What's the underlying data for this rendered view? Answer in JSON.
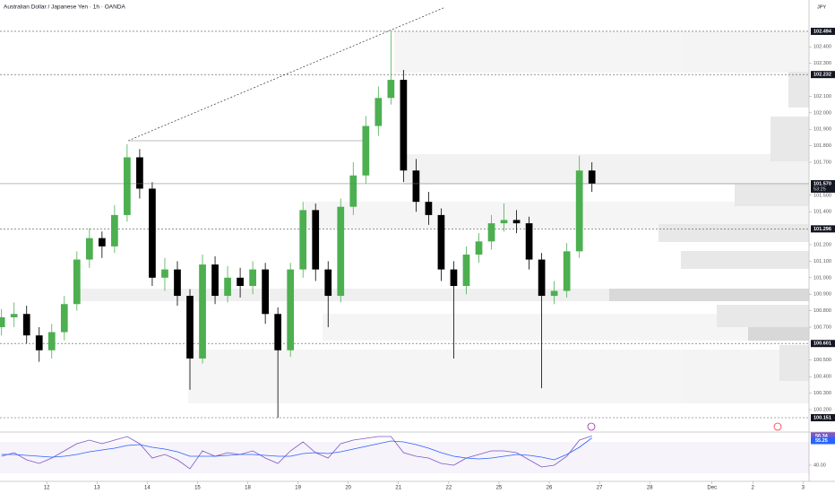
{
  "chart_data": {
    "type": "candlestick",
    "title": "Australian Dollar / Japanese Yen · 1h · OANDA",
    "currency": "JPY",
    "up_color": "#4caf50",
    "down_color": "#000000",
    "x": [
      0.1,
      0.35,
      0.6,
      0.85,
      1.1,
      1.35,
      1.6,
      1.85,
      2.1,
      2.35,
      2.6,
      2.85,
      3.1,
      3.35,
      3.6,
      3.85,
      4.1,
      4.35,
      4.6,
      4.85,
      5.1,
      5.35,
      5.6,
      5.85,
      6.1,
      6.35,
      6.6,
      6.85,
      7.1,
      7.35,
      7.6,
      7.85,
      8.1,
      8.35,
      8.6,
      8.85,
      9.1,
      9.35,
      9.6,
      9.85,
      10.1,
      10.35,
      10.6,
      10.85,
      11.1,
      11.35,
      11.6,
      11.85
    ],
    "open": [
      100.7,
      100.76,
      100.78,
      100.65,
      100.56,
      100.67,
      100.84,
      101.11,
      101.24,
      101.19,
      101.38,
      101.73,
      101.54,
      101.0,
      101.05,
      100.89,
      100.51,
      101.08,
      100.89,
      101.0,
      100.95,
      101.05,
      100.78,
      100.56,
      101.05,
      101.41,
      101.05,
      100.89,
      101.43,
      101.62,
      101.92,
      102.09,
      102.2,
      101.65,
      101.46,
      101.38,
      101.05,
      100.95,
      101.14,
      101.22,
      101.33,
      101.35,
      101.33,
      101.11,
      100.89,
      100.92,
      101.16,
      101.65
    ],
    "high": [
      100.81,
      100.85,
      100.83,
      100.7,
      100.72,
      100.89,
      101.16,
      101.3,
      101.28,
      101.44,
      101.81,
      101.78,
      101.58,
      101.12,
      101.1,
      100.93,
      101.14,
      101.13,
      101.07,
      101.06,
      101.1,
      101.09,
      100.82,
      101.09,
      101.46,
      101.45,
      101.1,
      101.48,
      101.7,
      101.98,
      102.16,
      102.49,
      102.26,
      101.72,
      101.52,
      101.42,
      101.1,
      101.19,
      101.27,
      101.38,
      101.45,
      101.41,
      101.37,
      101.15,
      100.98,
      101.21,
      101.74,
      101.7
    ],
    "low": [
      100.65,
      100.7,
      100.6,
      100.49,
      100.51,
      100.62,
      100.8,
      101.06,
      101.12,
      101.15,
      101.34,
      101.48,
      100.95,
      100.92,
      100.83,
      100.32,
      100.48,
      100.84,
      100.85,
      100.88,
      100.9,
      100.72,
      100.15,
      100.52,
      101.0,
      100.98,
      100.7,
      100.85,
      101.38,
      101.57,
      101.86,
      102.05,
      101.58,
      101.4,
      101.32,
      100.98,
      100.51,
      100.9,
      101.09,
      101.17,
      101.28,
      101.27,
      101.05,
      100.33,
      100.84,
      100.88,
      101.12,
      101.52
    ],
    "close": [
      100.76,
      100.78,
      100.65,
      100.56,
      100.67,
      100.84,
      101.11,
      101.24,
      101.19,
      101.38,
      101.73,
      101.54,
      101.0,
      101.05,
      100.89,
      100.51,
      101.08,
      100.89,
      101.0,
      100.95,
      101.05,
      100.78,
      100.56,
      101.05,
      101.41,
      101.05,
      100.89,
      101.43,
      101.62,
      101.92,
      102.09,
      102.2,
      101.65,
      101.46,
      101.38,
      101.05,
      100.95,
      101.14,
      101.22,
      101.33,
      101.35,
      101.33,
      101.11,
      100.89,
      100.92,
      101.16,
      101.65,
      101.57
    ],
    "xlim": [
      0.07,
      16.17
    ],
    "ylim": [
      100.064,
      102.684
    ],
    "xticks": [
      {
        "value": 1,
        "label": "12"
      },
      {
        "value": 2,
        "label": "13"
      },
      {
        "value": 3,
        "label": "14"
      },
      {
        "value": 4,
        "label": "15"
      },
      {
        "value": 5,
        "label": "18"
      },
      {
        "value": 6,
        "label": "19"
      },
      {
        "value": 7,
        "label": "20"
      },
      {
        "value": 8,
        "label": "21"
      },
      {
        "value": 9,
        "label": "22"
      },
      {
        "value": 10,
        "label": "25"
      },
      {
        "value": 11,
        "label": "26"
      },
      {
        "value": 12,
        "label": "27"
      },
      {
        "value": 13,
        "label": "28"
      },
      {
        "value": 14.24,
        "label": "Dec"
      },
      {
        "value": 15.05,
        "label": "2"
      },
      {
        "value": 16.05,
        "label": "3"
      }
    ],
    "yticks": [
      {
        "value": 100.2,
        "label": "100.200"
      },
      {
        "value": 100.3,
        "label": "100.300"
      },
      {
        "value": 100.4,
        "label": "100.400"
      },
      {
        "value": 100.5,
        "label": "100.500"
      },
      {
        "value": 100.7,
        "label": "100.700"
      },
      {
        "value": 100.8,
        "label": "100.800"
      },
      {
        "value": 100.9,
        "label": "100.900"
      },
      {
        "value": 101.0,
        "label": "101.000"
      },
      {
        "value": 101.1,
        "label": "101.100"
      },
      {
        "value": 101.2,
        "label": "101.200"
      },
      {
        "value": 101.4,
        "label": "101.400"
      },
      {
        "value": 101.5,
        "label": "101.500"
      },
      {
        "value": 101.7,
        "label": "101.700"
      },
      {
        "value": 101.8,
        "label": "101.800"
      },
      {
        "value": 101.9,
        "label": "101.900"
      },
      {
        "value": 102.0,
        "label": "102.000"
      },
      {
        "value": 102.1,
        "label": "102.100"
      },
      {
        "value": 102.3,
        "label": "102.300"
      },
      {
        "value": 102.4,
        "label": "102.400"
      }
    ],
    "levels": [
      102.494,
      102.232,
      101.296,
      100.601,
      100.151
    ],
    "current_price": {
      "value": 101.57,
      "label": "101.570"
    },
    "countdown": "53:25",
    "rsi": {
      "ylim": [
        31,
        57
      ],
      "yticks": [
        {
          "value": 40,
          "label": "40.00"
        }
      ],
      "series": [
        {
          "color": "#7e57c2",
          "values": [
            45,
            47,
            43,
            41,
            44,
            48,
            52,
            54,
            52,
            54,
            56,
            52,
            44,
            46,
            43,
            38,
            48,
            45,
            47,
            46,
            48,
            44,
            41,
            48,
            53,
            47,
            44,
            52,
            54,
            55,
            56,
            56,
            47,
            45,
            44,
            41,
            40,
            44,
            46,
            48,
            48,
            47,
            43,
            39,
            40,
            45,
            54,
            56.34
          ]
        },
        {
          "color": "#2962ff",
          "values": [
            46,
            46,
            45.5,
            45,
            44.5,
            45,
            46,
            47.5,
            48.5,
            49.5,
            51,
            51.5,
            50,
            49,
            47.5,
            45,
            45,
            45,
            45.5,
            46,
            46,
            45.5,
            45,
            45,
            46.5,
            47,
            46.5,
            47.5,
            49,
            50.5,
            52,
            53.5,
            53,
            51.5,
            49.5,
            47,
            45,
            44,
            43.5,
            44,
            45,
            46,
            45.5,
            44.5,
            43,
            46,
            50,
            55.25
          ]
        }
      ]
    }
  }
}
